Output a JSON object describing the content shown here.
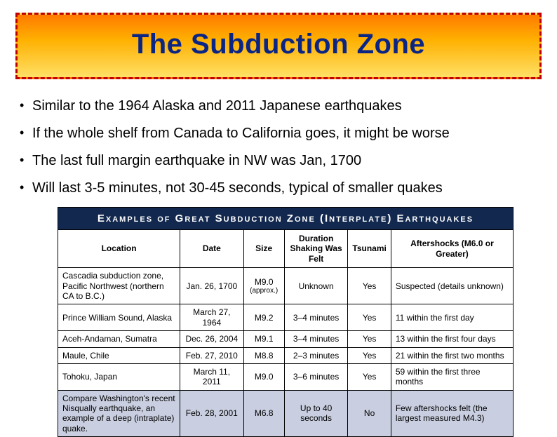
{
  "title": "The Subduction Zone",
  "bullets": [
    "Similar to the 1964 Alaska and  2011 Japanese earthquakes",
    "If the whole shelf from Canada to California goes, it might be worse",
    "The last full margin earthquake in NW was Jan, 1700",
    "Will last 3-5 minutes, not 30-45 seconds, typical of smaller quakes"
  ],
  "table": {
    "title": "Examples of Great Subduction Zone (Interplate) Earthquakes",
    "columns": [
      "Location",
      "Date",
      "Size",
      "Duration Shaking Was Felt",
      "Tsunami",
      "Aftershocks (M6.0 or Greater)"
    ],
    "rows": [
      {
        "location": "Cascadia subduction zone, Pacific Northwest (northern CA to B.C.)",
        "date": "Jan. 26, 1700",
        "size": "M9.0",
        "size_note": "(approx.)",
        "duration": "Unknown",
        "tsunami": "Yes",
        "aftershocks": "Suspected (details unknown)"
      },
      {
        "location": "Prince William Sound, Alaska",
        "date": "March 27, 1964",
        "size": "M9.2",
        "size_note": "",
        "duration": "3–4 minutes",
        "tsunami": "Yes",
        "aftershocks": "11 within the first day"
      },
      {
        "location": "Aceh-Andaman, Sumatra",
        "date": "Dec. 26, 2004",
        "size": "M9.1",
        "size_note": "",
        "duration": "3–4 minutes",
        "tsunami": "Yes",
        "aftershocks": "13 within the first four days"
      },
      {
        "location": "Maule, Chile",
        "date": "Feb. 27, 2010",
        "size": "M8.8",
        "size_note": "",
        "duration": "2–3 minutes",
        "tsunami": "Yes",
        "aftershocks": "21 within the first two months"
      },
      {
        "location": "Tohoku, Japan",
        "date": "March 11, 2011",
        "size": "M9.0",
        "size_note": "",
        "duration": "3–6 minutes",
        "tsunami": "Yes",
        "aftershocks": "59 within the first three months"
      }
    ],
    "footer": {
      "location": "Compare Washington's recent Nisqually earthquake, an example of a deep (intraplate) quake.",
      "date": "Feb. 28, 2001",
      "size": "M6.8",
      "size_note": "",
      "duration": "Up to 40 seconds",
      "tsunami": "No",
      "aftershocks": "Few aftershocks felt (the largest measured M4.3)"
    },
    "colors": {
      "title_bg": "#12284e",
      "title_fg": "#ffffff",
      "footer_bg": "#c9cfe0",
      "border": "#000000",
      "cell_bg": "#ffffff"
    },
    "column_widths_pct": [
      27,
      14,
      9,
      14,
      9,
      27
    ]
  },
  "title_box": {
    "gradient": [
      "#ff7a00",
      "#ffb000",
      "#ffe066"
    ],
    "border_color": "#c00000",
    "border_style": "dashed",
    "title_color": "#0b2585",
    "title_fontsize_pt": 30
  }
}
